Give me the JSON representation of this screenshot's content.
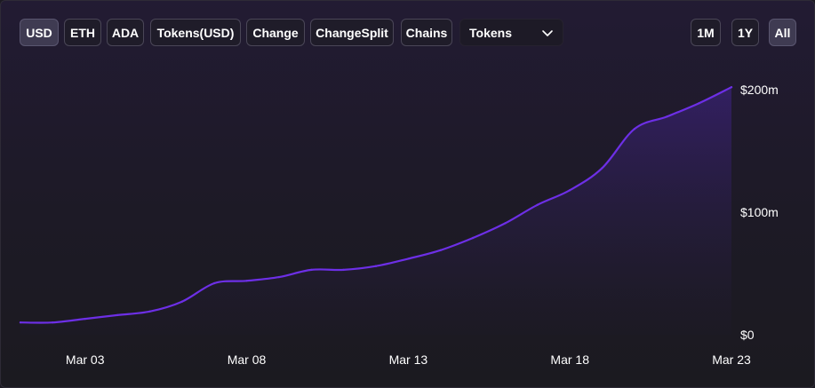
{
  "currency_tabs": [
    "USD",
    "ETH",
    "ADA",
    "Tokens(USD)",
    "Change",
    "ChangeSplit",
    "Chains"
  ],
  "active_currency": "USD",
  "dropdown": {
    "selected": "Tokens",
    "icon": "chevron-down-icon"
  },
  "range_tabs": [
    "1M",
    "1Y",
    "All"
  ],
  "active_range": "All",
  "colors": {
    "line": "#6d2fe6",
    "background": "#1c1a22",
    "active_tab": "#3f3b52"
  },
  "chart_data": {
    "type": "area",
    "title": "",
    "xlabel": "",
    "ylabel": "",
    "x_ticks": [
      "Mar 03",
      "Mar 08",
      "Mar 13",
      "Mar 18",
      "Mar 23"
    ],
    "y_ticks": [
      "$0",
      "$100m",
      "$200m"
    ],
    "ylim": [
      0,
      200
    ],
    "y_unit": "$m",
    "grid": false,
    "legend": "none",
    "series": [
      {
        "x": [
          "Mar 01",
          "Mar 02",
          "Mar 03",
          "Mar 04",
          "Mar 05",
          "Mar 06",
          "Mar 07",
          "Mar 08",
          "Mar 09",
          "Mar 10",
          "Mar 11",
          "Mar 12",
          "Mar 13",
          "Mar 14",
          "Mar 15",
          "Mar 16",
          "Mar 17",
          "Mar 18",
          "Mar 19",
          "Mar 20",
          "Mar 21",
          "Mar 22",
          "Mar 23"
        ],
        "values": [
          10,
          10,
          13,
          16,
          19,
          27,
          42,
          44,
          47,
          53,
          53,
          56,
          62,
          69,
          79,
          91,
          106,
          118,
          136,
          168,
          178,
          189,
          202
        ]
      }
    ]
  }
}
